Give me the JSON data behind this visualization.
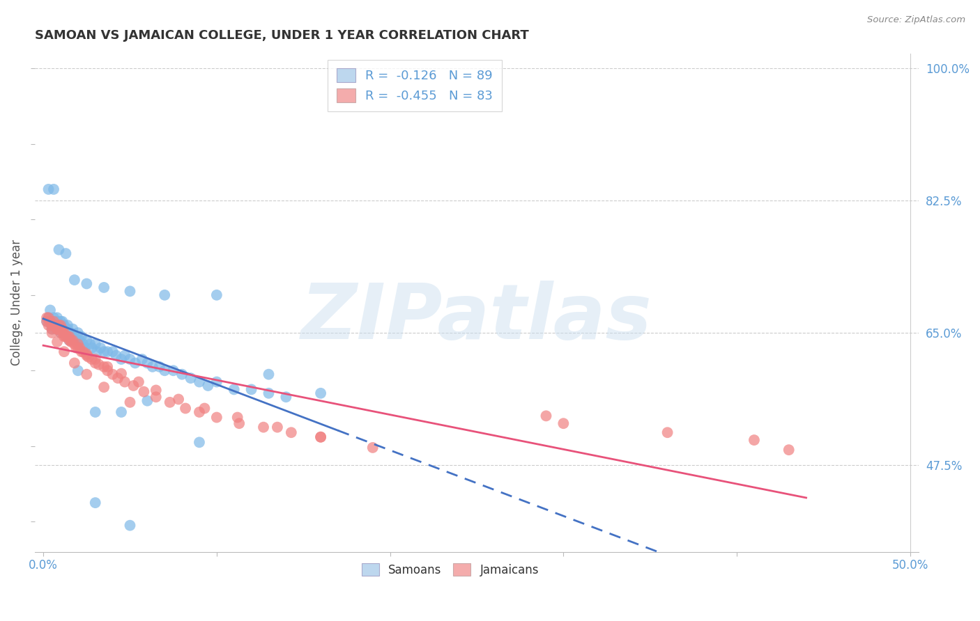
{
  "title": "SAMOAN VS JAMAICAN COLLEGE, UNDER 1 YEAR CORRELATION CHART",
  "source": "Source: ZipAtlas.com",
  "ylabel": "College, Under 1 year",
  "watermark": "ZIPatlas",
  "right_yticks": [
    1.0,
    0.825,
    0.65,
    0.475
  ],
  "right_ytick_labels": [
    "100.0%",
    "82.5%",
    "65.0%",
    "47.5%"
  ],
  "samoan_R": -0.126,
  "samoan_N": 89,
  "jamaican_R": -0.455,
  "jamaican_N": 83,
  "samoan_color": "#7EB9E8",
  "jamaican_color": "#F08080",
  "trend_samoan_color": "#4472C4",
  "trend_jamaican_color": "#E8527A",
  "legend_box_color_samoan": "#BDD7EE",
  "legend_box_color_jamaican": "#F4ACAC",
  "samoans_x": [
    0.002,
    0.003,
    0.004,
    0.005,
    0.005,
    0.006,
    0.006,
    0.007,
    0.007,
    0.008,
    0.008,
    0.008,
    0.009,
    0.009,
    0.01,
    0.01,
    0.01,
    0.011,
    0.011,
    0.011,
    0.012,
    0.012,
    0.013,
    0.013,
    0.014,
    0.014,
    0.014,
    0.015,
    0.015,
    0.016,
    0.016,
    0.017,
    0.017,
    0.018,
    0.019,
    0.02,
    0.02,
    0.021,
    0.022,
    0.023,
    0.024,
    0.025,
    0.027,
    0.028,
    0.03,
    0.031,
    0.033,
    0.035,
    0.037,
    0.04,
    0.042,
    0.045,
    0.047,
    0.05,
    0.053,
    0.057,
    0.06,
    0.063,
    0.067,
    0.07,
    0.075,
    0.08,
    0.085,
    0.09,
    0.095,
    0.1,
    0.11,
    0.12,
    0.13,
    0.14,
    0.003,
    0.006,
    0.009,
    0.013,
    0.018,
    0.025,
    0.035,
    0.05,
    0.07,
    0.1,
    0.13,
    0.16,
    0.02,
    0.03,
    0.045,
    0.06,
    0.09,
    0.03,
    0.05
  ],
  "samoans_y": [
    0.665,
    0.67,
    0.68,
    0.66,
    0.655,
    0.67,
    0.66,
    0.665,
    0.655,
    0.66,
    0.665,
    0.67,
    0.66,
    0.655,
    0.665,
    0.66,
    0.65,
    0.66,
    0.655,
    0.665,
    0.655,
    0.66,
    0.655,
    0.65,
    0.66,
    0.655,
    0.645,
    0.65,
    0.64,
    0.65,
    0.645,
    0.655,
    0.645,
    0.645,
    0.64,
    0.65,
    0.64,
    0.64,
    0.645,
    0.635,
    0.63,
    0.64,
    0.635,
    0.63,
    0.635,
    0.625,
    0.63,
    0.625,
    0.625,
    0.625,
    0.62,
    0.615,
    0.62,
    0.615,
    0.61,
    0.615,
    0.61,
    0.605,
    0.605,
    0.6,
    0.6,
    0.595,
    0.59,
    0.585,
    0.58,
    0.585,
    0.575,
    0.575,
    0.57,
    0.565,
    0.84,
    0.84,
    0.76,
    0.755,
    0.72,
    0.715,
    0.71,
    0.705,
    0.7,
    0.7,
    0.595,
    0.57,
    0.6,
    0.545,
    0.545,
    0.56,
    0.505,
    0.425,
    0.395
  ],
  "jamaicans_x": [
    0.002,
    0.003,
    0.004,
    0.005,
    0.005,
    0.006,
    0.006,
    0.007,
    0.008,
    0.009,
    0.009,
    0.01,
    0.01,
    0.011,
    0.011,
    0.012,
    0.012,
    0.013,
    0.014,
    0.015,
    0.015,
    0.016,
    0.017,
    0.018,
    0.019,
    0.02,
    0.021,
    0.022,
    0.023,
    0.025,
    0.026,
    0.028,
    0.03,
    0.032,
    0.035,
    0.037,
    0.04,
    0.043,
    0.047,
    0.052,
    0.058,
    0.065,
    0.073,
    0.082,
    0.09,
    0.1,
    0.113,
    0.127,
    0.143,
    0.16,
    0.002,
    0.004,
    0.006,
    0.008,
    0.01,
    0.013,
    0.016,
    0.02,
    0.025,
    0.03,
    0.037,
    0.045,
    0.055,
    0.065,
    0.078,
    0.093,
    0.112,
    0.135,
    0.16,
    0.19,
    0.003,
    0.005,
    0.008,
    0.012,
    0.018,
    0.025,
    0.035,
    0.05,
    0.3,
    0.36,
    0.41,
    0.29,
    0.43
  ],
  "jamaicans_y": [
    0.665,
    0.67,
    0.665,
    0.66,
    0.655,
    0.665,
    0.66,
    0.66,
    0.655,
    0.66,
    0.655,
    0.66,
    0.655,
    0.655,
    0.65,
    0.65,
    0.645,
    0.645,
    0.645,
    0.64,
    0.645,
    0.64,
    0.64,
    0.635,
    0.63,
    0.635,
    0.63,
    0.625,
    0.625,
    0.62,
    0.618,
    0.615,
    0.61,
    0.608,
    0.605,
    0.6,
    0.595,
    0.59,
    0.585,
    0.58,
    0.572,
    0.565,
    0.558,
    0.55,
    0.545,
    0.538,
    0.53,
    0.525,
    0.518,
    0.512,
    0.67,
    0.665,
    0.66,
    0.655,
    0.65,
    0.645,
    0.638,
    0.63,
    0.622,
    0.615,
    0.605,
    0.596,
    0.585,
    0.574,
    0.562,
    0.55,
    0.538,
    0.525,
    0.512,
    0.498,
    0.66,
    0.65,
    0.638,
    0.625,
    0.61,
    0.595,
    0.578,
    0.558,
    0.53,
    0.518,
    0.508,
    0.54,
    0.495
  ],
  "ylim": [
    0.36,
    1.02
  ],
  "xlim": [
    -0.005,
    0.505
  ],
  "grid_color": "#CCCCCC",
  "background_color": "#FFFFFF",
  "title_color": "#333333",
  "right_axis_color": "#5B9BD5",
  "source_color": "#888888",
  "label_color": "#5B9BD5"
}
